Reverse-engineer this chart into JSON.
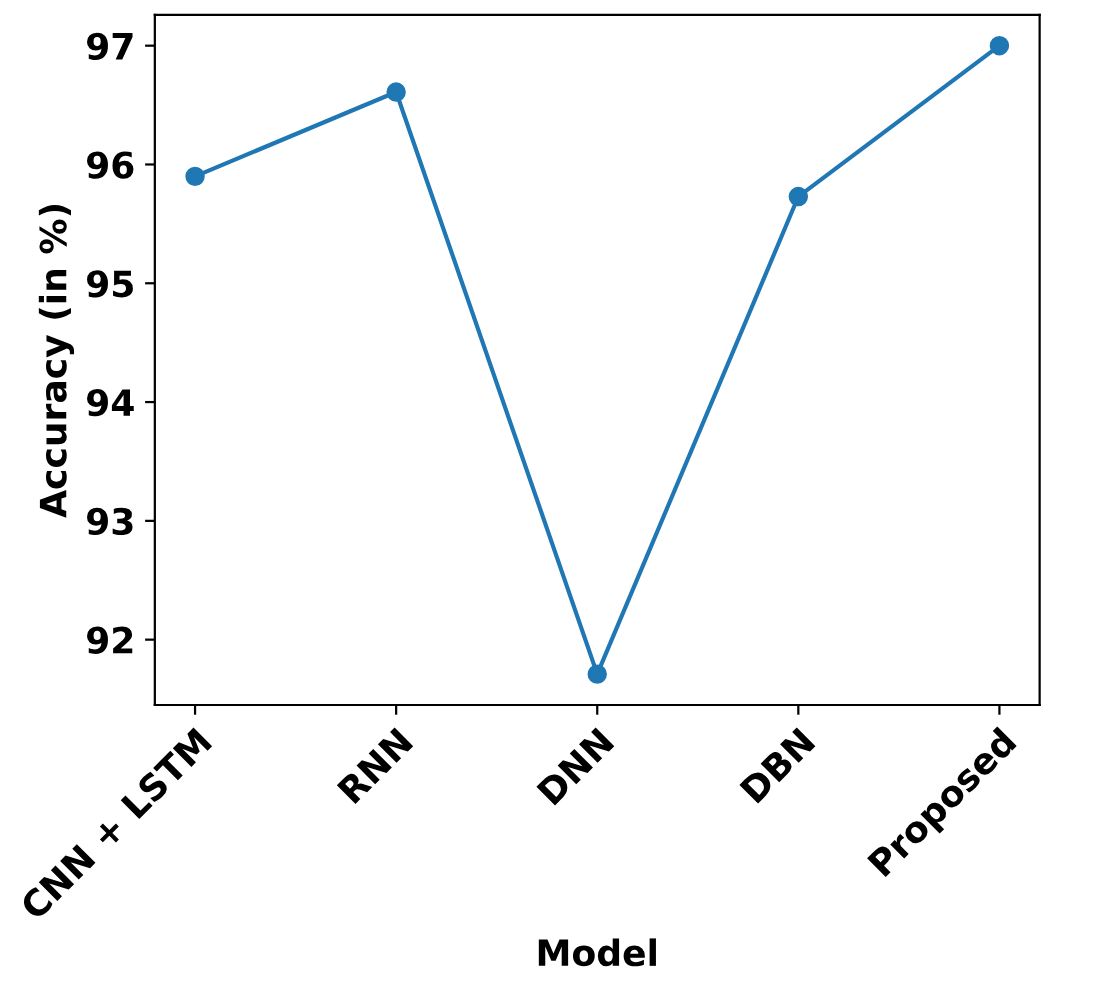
{
  "chart_data": {
    "type": "line",
    "xlabel": "Model",
    "ylabel": "Accuracy (in %)",
    "categories": [
      "CNN + LSTM",
      "RNN",
      "DNN",
      "DBN",
      "Proposed"
    ],
    "series": [
      {
        "color": "#1f77b4",
        "values": [
          95.9,
          96.61,
          91.71,
          95.73,
          97.0
        ]
      }
    ],
    "ylim": [
      91.45,
      97.26
    ],
    "yticks": [
      92,
      93,
      94,
      95,
      96,
      97
    ],
    "marker": "circle",
    "line_style": "solid",
    "grid": false,
    "legend": false
  }
}
